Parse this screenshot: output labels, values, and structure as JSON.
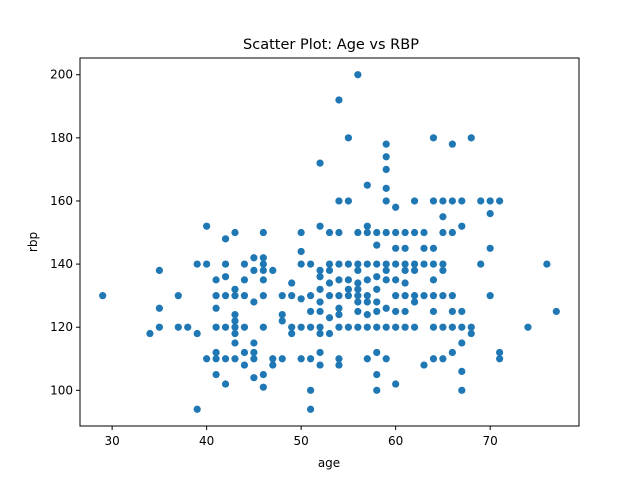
{
  "chart_data": {
    "type": "scatter",
    "title": "Scatter Plot: Age vs RBP",
    "xlabel": "age",
    "ylabel": "rbp",
    "xlim": [
      26.6,
      79.4
    ],
    "ylim": [
      88.7,
      205.3
    ],
    "xticks": [
      30,
      40,
      50,
      60,
      70
    ],
    "yticks": [
      100,
      120,
      140,
      160,
      180,
      200
    ],
    "grid": false,
    "legend": "none",
    "marker_color": "#1f77b4",
    "points": [
      [
        29,
        130
      ],
      [
        34,
        118
      ],
      [
        35,
        120
      ],
      [
        35,
        126
      ],
      [
        35,
        138
      ],
      [
        37,
        120
      ],
      [
        37,
        130
      ],
      [
        38,
        120
      ],
      [
        39,
        94
      ],
      [
        39,
        118
      ],
      [
        39,
        140
      ],
      [
        40,
        110
      ],
      [
        40,
        140
      ],
      [
        40,
        152
      ],
      [
        41,
        105
      ],
      [
        41,
        110
      ],
      [
        41,
        112
      ],
      [
        41,
        120
      ],
      [
        41,
        126
      ],
      [
        41,
        130
      ],
      [
        41,
        135
      ],
      [
        42,
        102
      ],
      [
        42,
        110
      ],
      [
        42,
        120
      ],
      [
        42,
        130
      ],
      [
        42,
        136
      ],
      [
        42,
        140
      ],
      [
        42,
        148
      ],
      [
        43,
        110
      ],
      [
        43,
        115
      ],
      [
        43,
        118
      ],
      [
        43,
        120
      ],
      [
        43,
        122
      ],
      [
        43,
        124
      ],
      [
        43,
        130
      ],
      [
        43,
        132
      ],
      [
        43,
        150
      ],
      [
        44,
        108
      ],
      [
        44,
        112
      ],
      [
        44,
        120
      ],
      [
        44,
        130
      ],
      [
        44,
        135
      ],
      [
        44,
        140
      ],
      [
        45,
        104
      ],
      [
        45,
        110
      ],
      [
        45,
        112
      ],
      [
        45,
        115
      ],
      [
        45,
        128
      ],
      [
        45,
        138
      ],
      [
        45,
        142
      ],
      [
        46,
        101
      ],
      [
        46,
        105
      ],
      [
        46,
        120
      ],
      [
        46,
        130
      ],
      [
        46,
        135
      ],
      [
        46,
        138
      ],
      [
        46,
        140
      ],
      [
        46,
        142
      ],
      [
        46,
        150
      ],
      [
        47,
        108
      ],
      [
        47,
        110
      ],
      [
        47,
        138
      ],
      [
        48,
        110
      ],
      [
        48,
        122
      ],
      [
        48,
        124
      ],
      [
        48,
        130
      ],
      [
        49,
        118
      ],
      [
        49,
        120
      ],
      [
        49,
        130
      ],
      [
        49,
        134
      ],
      [
        50,
        110
      ],
      [
        50,
        120
      ],
      [
        50,
        129
      ],
      [
        50,
        140
      ],
      [
        50,
        144
      ],
      [
        50,
        150
      ],
      [
        51,
        94
      ],
      [
        51,
        100
      ],
      [
        51,
        110
      ],
      [
        51,
        120
      ],
      [
        51,
        125
      ],
      [
        51,
        130
      ],
      [
        51,
        140
      ],
      [
        52,
        108
      ],
      [
        52,
        112
      ],
      [
        52,
        118
      ],
      [
        52,
        120
      ],
      [
        52,
        125
      ],
      [
        52,
        128
      ],
      [
        52,
        132
      ],
      [
        52,
        136
      ],
      [
        52,
        138
      ],
      [
        52,
        152
      ],
      [
        52,
        172
      ],
      [
        53,
        118
      ],
      [
        53,
        123
      ],
      [
        53,
        130
      ],
      [
        53,
        134
      ],
      [
        53,
        138
      ],
      [
        53,
        140
      ],
      [
        53,
        150
      ],
      [
        54,
        108
      ],
      [
        54,
        110
      ],
      [
        54,
        120
      ],
      [
        54,
        124
      ],
      [
        54,
        126
      ],
      [
        54,
        130
      ],
      [
        54,
        135
      ],
      [
        54,
        140
      ],
      [
        54,
        150
      ],
      [
        54,
        160
      ],
      [
        54,
        192
      ],
      [
        55,
        120
      ],
      [
        55,
        130
      ],
      [
        55,
        132
      ],
      [
        55,
        135
      ],
      [
        55,
        140
      ],
      [
        55,
        160
      ],
      [
        55,
        180
      ],
      [
        56,
        120
      ],
      [
        56,
        125
      ],
      [
        56,
        128
      ],
      [
        56,
        130
      ],
      [
        56,
        132
      ],
      [
        56,
        134
      ],
      [
        56,
        138
      ],
      [
        56,
        140
      ],
      [
        56,
        150
      ],
      [
        56,
        200
      ],
      [
        57,
        110
      ],
      [
        57,
        120
      ],
      [
        57,
        124
      ],
      [
        57,
        128
      ],
      [
        57,
        130
      ],
      [
        57,
        135
      ],
      [
        57,
        140
      ],
      [
        57,
        150
      ],
      [
        57,
        152
      ],
      [
        57,
        165
      ],
      [
        58,
        100
      ],
      [
        58,
        105
      ],
      [
        58,
        112
      ],
      [
        58,
        120
      ],
      [
        58,
        125
      ],
      [
        58,
        128
      ],
      [
        58,
        132
      ],
      [
        58,
        136
      ],
      [
        58,
        140
      ],
      [
        58,
        146
      ],
      [
        58,
        150
      ],
      [
        59,
        110
      ],
      [
        59,
        120
      ],
      [
        59,
        126
      ],
      [
        59,
        135
      ],
      [
        59,
        138
      ],
      [
        59,
        140
      ],
      [
        59,
        150
      ],
      [
        59,
        160
      ],
      [
        59,
        164
      ],
      [
        59,
        170
      ],
      [
        59,
        174
      ],
      [
        59,
        178
      ],
      [
        60,
        102
      ],
      [
        60,
        120
      ],
      [
        60,
        125
      ],
      [
        60,
        130
      ],
      [
        60,
        135
      ],
      [
        60,
        140
      ],
      [
        60,
        145
      ],
      [
        60,
        150
      ],
      [
        60,
        158
      ],
      [
        61,
        120
      ],
      [
        61,
        125
      ],
      [
        61,
        130
      ],
      [
        61,
        134
      ],
      [
        61,
        138
      ],
      [
        61,
        140
      ],
      [
        61,
        145
      ],
      [
        61,
        150
      ],
      [
        62,
        120
      ],
      [
        62,
        128
      ],
      [
        62,
        130
      ],
      [
        62,
        138
      ],
      [
        62,
        140
      ],
      [
        62,
        150
      ],
      [
        62,
        160
      ],
      [
        63,
        108
      ],
      [
        63,
        130
      ],
      [
        63,
        140
      ],
      [
        63,
        145
      ],
      [
        63,
        150
      ],
      [
        64,
        110
      ],
      [
        64,
        120
      ],
      [
        64,
        125
      ],
      [
        64,
        130
      ],
      [
        64,
        135
      ],
      [
        64,
        140
      ],
      [
        64,
        145
      ],
      [
        64,
        160
      ],
      [
        64,
        180
      ],
      [
        65,
        110
      ],
      [
        65,
        120
      ],
      [
        65,
        130
      ],
      [
        65,
        138
      ],
      [
        65,
        140
      ],
      [
        65,
        150
      ],
      [
        65,
        155
      ],
      [
        65,
        160
      ],
      [
        66,
        112
      ],
      [
        66,
        120
      ],
      [
        66,
        125
      ],
      [
        66,
        130
      ],
      [
        66,
        150
      ],
      [
        66,
        160
      ],
      [
        66,
        178
      ],
      [
        67,
        100
      ],
      [
        67,
        106
      ],
      [
        67,
        115
      ],
      [
        67,
        120
      ],
      [
        67,
        125
      ],
      [
        67,
        152
      ],
      [
        67,
        160
      ],
      [
        68,
        118
      ],
      [
        68,
        120
      ],
      [
        68,
        180
      ],
      [
        69,
        140
      ],
      [
        69,
        160
      ],
      [
        70,
        130
      ],
      [
        70,
        145
      ],
      [
        70,
        156
      ],
      [
        70,
        160
      ],
      [
        71,
        110
      ],
      [
        71,
        112
      ],
      [
        71,
        160
      ],
      [
        74,
        120
      ],
      [
        76,
        140
      ],
      [
        77,
        125
      ]
    ]
  }
}
